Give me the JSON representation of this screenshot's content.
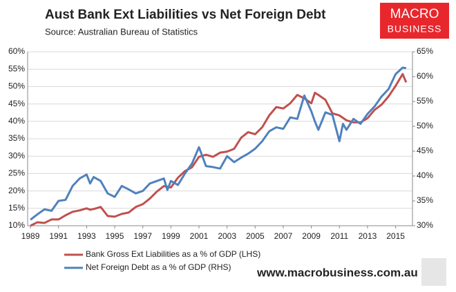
{
  "chart_data": {
    "type": "line",
    "title": "Aust Bank Ext Liabilities vs Net Foreign Debt",
    "subtitle": "Source:  Australian Bureau of Statistics",
    "logo": [
      "MACRO",
      "BUSINESS"
    ],
    "footer": "www.macrobusiness.com.au",
    "x": [
      1989,
      1989.5,
      1990,
      1990.5,
      1991,
      1991.5,
      1992,
      1992.5,
      1993,
      1993.25,
      1993.5,
      1994,
      1994.5,
      1995,
      1995.5,
      1996,
      1996.5,
      1997,
      1997.5,
      1998,
      1998.5,
      1998.75,
      1999,
      1999.5,
      2000,
      2000.5,
      2001,
      2001.5,
      2002,
      2002.5,
      2003,
      2003.5,
      2004,
      2004.5,
      2005,
      2005.5,
      2006,
      2006.5,
      2007,
      2007.5,
      2008,
      2008.5,
      2009,
      2009.25,
      2009.5,
      2010,
      2010.5,
      2011,
      2011.25,
      2011.5,
      2012,
      2012.5,
      2013,
      2013.5,
      2014,
      2014.5,
      2015,
      2015.5,
      2015.75
    ],
    "series": [
      {
        "name": "Bank Gross Ext Liabilities as a % of GDP (LHS)",
        "color": "#c0504d",
        "values": [
          10.0,
          11.0,
          10.8,
          11.8,
          11.8,
          13.0,
          14.0,
          14.4,
          15.0,
          14.6,
          14.8,
          15.4,
          12.8,
          12.6,
          13.4,
          13.8,
          15.4,
          16.2,
          17.8,
          19.8,
          21.4,
          21.2,
          21.0,
          23.8,
          25.7,
          26.8,
          29.8,
          30.4,
          29.8,
          31.0,
          31.3,
          32.1,
          35.3,
          36.9,
          36.3,
          38.3,
          41.7,
          44.1,
          43.7,
          45.2,
          47.6,
          46.6,
          45.2,
          48.2,
          47.6,
          46.2,
          42.3,
          41.7,
          41.0,
          40.3,
          39.7,
          39.7,
          40.9,
          43.3,
          44.8,
          47.2,
          50.2,
          53.6,
          51.2
        ]
      },
      {
        "name": "Net Foreign Debt as a % of GDP (RHS)",
        "color": "#4f81bd",
        "axis": "y2",
        "values": [
          31.2,
          32.3,
          33.3,
          33.0,
          35.0,
          35.2,
          38.0,
          39.5,
          40.3,
          38.5,
          39.8,
          39.0,
          36.5,
          35.8,
          38.0,
          37.3,
          36.5,
          37.0,
          38.5,
          39.0,
          39.5,
          37.2,
          39.0,
          38.2,
          40.5,
          42.5,
          45.8,
          42.0,
          41.8,
          41.5,
          44.0,
          42.8,
          43.7,
          44.5,
          45.5,
          47.0,
          49.0,
          49.8,
          49.5,
          51.8,
          51.5,
          56.2,
          53.0,
          51.0,
          49.3,
          52.8,
          52.3,
          47.0,
          50.5,
          49.3,
          51.5,
          50.5,
          52.5,
          54.0,
          56.0,
          57.5,
          60.5,
          61.8,
          61.7
        ]
      }
    ],
    "xlim": [
      1988.8,
      2016.2
    ],
    "xticks": [
      1989,
      1991,
      1993,
      1995,
      1997,
      1999,
      2001,
      2003,
      2005,
      2007,
      2009,
      2011,
      2013,
      2015
    ],
    "ylim": [
      10,
      60
    ],
    "yticks": [
      {
        "value": 10,
        "label": "10%"
      },
      {
        "value": 15,
        "label": "15%"
      },
      {
        "value": 20,
        "label": "20%"
      },
      {
        "value": 25,
        "label": "25%"
      },
      {
        "value": 30,
        "label": "30%"
      },
      {
        "value": 35,
        "label": "35%"
      },
      {
        "value": 40,
        "label": "40%"
      },
      {
        "value": 45,
        "label": "45%"
      },
      {
        "value": 50,
        "label": "50%"
      },
      {
        "value": 55,
        "label": "55%"
      },
      {
        "value": 60,
        "label": "60%"
      }
    ],
    "y2lim": [
      30,
      65
    ],
    "y2ticks": [
      {
        "value": 30,
        "label": "30%"
      },
      {
        "value": 35,
        "label": "35%"
      },
      {
        "value": 40,
        "label": "40%"
      },
      {
        "value": 45,
        "label": "45%"
      },
      {
        "value": 50,
        "label": "50%"
      },
      {
        "value": 55,
        "label": "55%"
      },
      {
        "value": 60,
        "label": "60%"
      },
      {
        "value": 65,
        "label": "65%"
      }
    ],
    "grid": true,
    "legend": "bottom"
  }
}
